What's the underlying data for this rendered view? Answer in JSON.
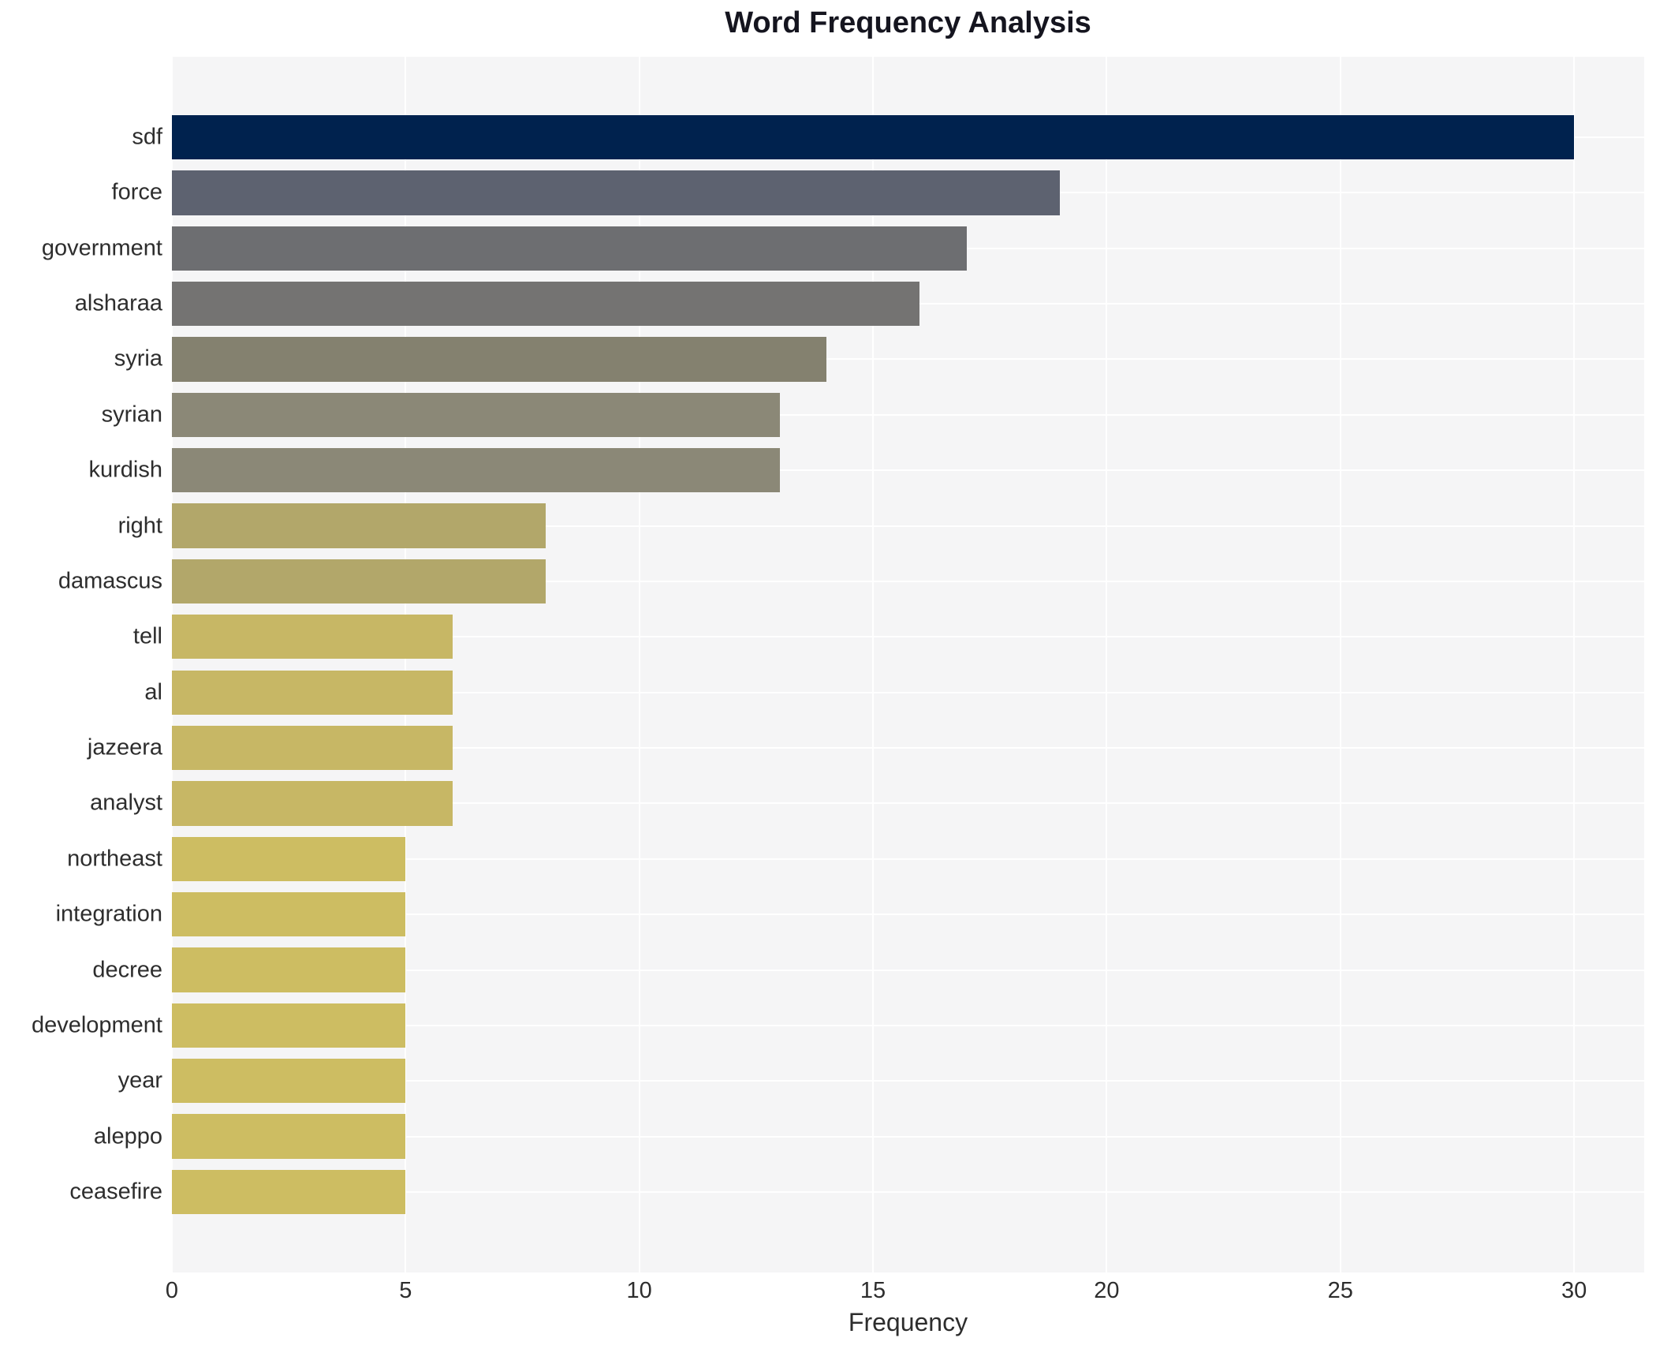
{
  "title": "Word Frequency Analysis",
  "axis": {
    "x_label": "Frequency"
  },
  "chart_data": {
    "type": "bar",
    "orientation": "horizontal",
    "title": "Word Frequency Analysis",
    "xlabel": "Frequency",
    "ylabel": "",
    "xlim": [
      0,
      31.5
    ],
    "xticks": [
      0,
      5,
      10,
      15,
      20,
      25,
      30
    ],
    "grid": true,
    "legend": "none",
    "plot_background": "#f5f5f6",
    "grid_color": "#ffffff",
    "categories": [
      "sdf",
      "force",
      "government",
      "alsharaa",
      "syria",
      "syrian",
      "kurdish",
      "right",
      "damascus",
      "tell",
      "al",
      "jazeera",
      "analyst",
      "northeast",
      "integration",
      "decree",
      "development",
      "year",
      "aleppo",
      "ceasefire"
    ],
    "values": [
      30,
      19,
      17,
      16,
      14,
      13,
      13,
      8,
      8,
      6,
      6,
      6,
      6,
      5,
      5,
      5,
      5,
      5,
      5,
      5
    ],
    "bar_colors": [
      "#00224e",
      "#5d6270",
      "#6d6e71",
      "#747372",
      "#84816f",
      "#8b8877",
      "#8b8877",
      "#b2a76a",
      "#b2a76a",
      "#c7b765",
      "#c7b765",
      "#c7b765",
      "#c7b765",
      "#cdbd62",
      "#cdbd62",
      "#cdbd62",
      "#cdbd62",
      "#cdbd62",
      "#cdbd62",
      "#cdbd62"
    ]
  }
}
